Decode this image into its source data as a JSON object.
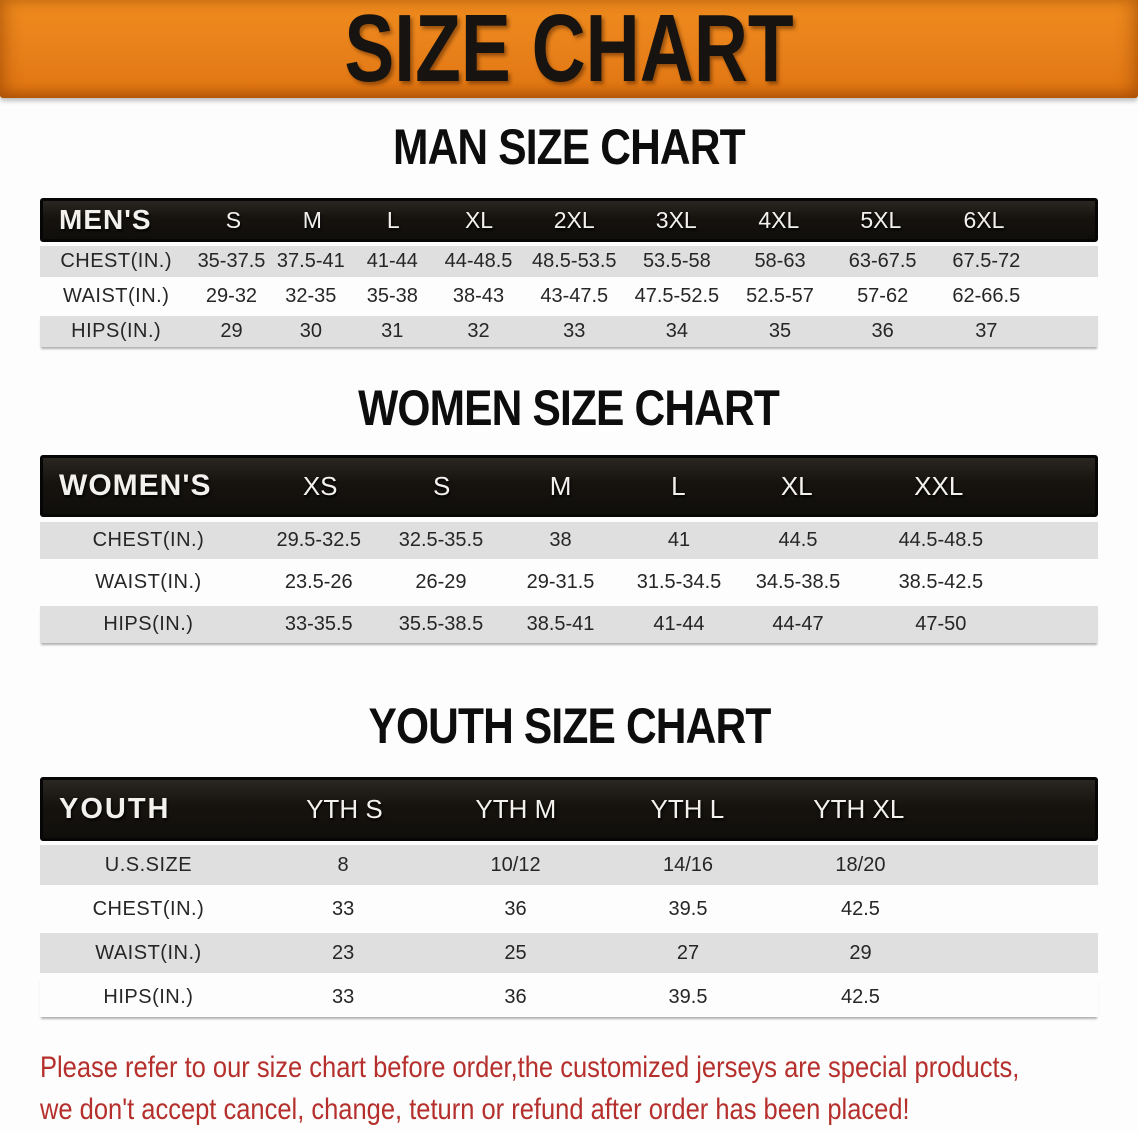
{
  "banner": {
    "title": "SIZE CHART",
    "bg_color": "#e8801a",
    "text_color": "#161310"
  },
  "sections": [
    {
      "heading": "MAN SIZE CHART",
      "table": {
        "header_label": "MEN'S",
        "columns": [
          "S",
          "M",
          "L",
          "XL",
          "2XL",
          "3XL",
          "4XL",
          "5XL",
          "6XL"
        ],
        "rows": [
          {
            "label": "CHEST(IN.)",
            "values": [
              "35-37.5",
              "37.5-41",
              "41-44",
              "44-48.5",
              "48.5-53.5",
              "53.5-58",
              "58-63",
              "63-67.5",
              "67.5-72"
            ]
          },
          {
            "label": "WAIST(IN.)",
            "values": [
              "29-32",
              "32-35",
              "35-38",
              "38-43",
              "43-47.5",
              "47.5-52.5",
              "52.5-57",
              "57-62",
              "62-66.5"
            ]
          },
          {
            "label": "HIPS(IN.)",
            "values": [
              "29",
              "30",
              "31",
              "32",
              "33",
              "34",
              "35",
              "36",
              "37"
            ]
          }
        ]
      }
    },
    {
      "heading": "WOMEN SIZE CHART",
      "table": {
        "header_label": "WOMEN'S",
        "columns": [
          "XS",
          "S",
          "M",
          "L",
          "XL",
          "XXL"
        ],
        "rows": [
          {
            "label": "CHEST(IN.)",
            "values": [
              "29.5-32.5",
              "32.5-35.5",
              "38",
              "41",
              "44.5",
              "44.5-48.5"
            ]
          },
          {
            "label": "WAIST(IN.)",
            "values": [
              "23.5-26",
              "26-29",
              "29-31.5",
              "31.5-34.5",
              "34.5-38.5",
              "38.5-42.5"
            ]
          },
          {
            "label": "HIPS(IN.)",
            "values": [
              "33-35.5",
              "35.5-38.5",
              "38.5-41",
              "41-44",
              "44-47",
              "47-50"
            ]
          }
        ]
      }
    },
    {
      "heading": "YOUTH SIZE CHART",
      "table": {
        "header_label": "YOUTH",
        "columns": [
          "YTH S",
          "YTH M",
          "YTH L",
          "YTH XL"
        ],
        "rows": [
          {
            "label": "U.S.SIZE",
            "values": [
              "8",
              "10/12",
              "14/16",
              "18/20"
            ]
          },
          {
            "label": "CHEST(IN.)",
            "values": [
              "33",
              "36",
              "39.5",
              "42.5"
            ]
          },
          {
            "label": "WAIST(IN.)",
            "values": [
              "23",
              "25",
              "27",
              "29"
            ]
          },
          {
            "label": "HIPS(IN.)",
            "values": [
              "33",
              "36",
              "39.5",
              "42.5"
            ]
          }
        ]
      }
    }
  ],
  "disclaimer": {
    "line1": "Please refer to our size chart before order,the customized jerseys are special products,",
    "line2": "we don't accept cancel, change, teturn or refund after order has been placed!",
    "color": "#b5302c"
  },
  "colors": {
    "header_row_bg": "#16130f",
    "gray_row_bg": "#dfdfdf",
    "banner_orange": "#e8801a"
  },
  "chart_data": [
    {
      "type": "table",
      "title": "MAN SIZE CHART",
      "columns": [
        "MEN'S",
        "S",
        "M",
        "L",
        "XL",
        "2XL",
        "3XL",
        "4XL",
        "5XL",
        "6XL"
      ],
      "rows": [
        [
          "CHEST(IN.)",
          "35-37.5",
          "37.5-41",
          "41-44",
          "44-48.5",
          "48.5-53.5",
          "53.5-58",
          "58-63",
          "63-67.5",
          "67.5-72"
        ],
        [
          "WAIST(IN.)",
          "29-32",
          "32-35",
          "35-38",
          "38-43",
          "43-47.5",
          "47.5-52.5",
          "52.5-57",
          "57-62",
          "62-66.5"
        ],
        [
          "HIPS(IN.)",
          "29",
          "30",
          "31",
          "32",
          "33",
          "34",
          "35",
          "36",
          "37"
        ]
      ]
    },
    {
      "type": "table",
      "title": "WOMEN SIZE CHART",
      "columns": [
        "WOMEN'S",
        "XS",
        "S",
        "M",
        "L",
        "XL",
        "XXL"
      ],
      "rows": [
        [
          "CHEST(IN.)",
          "29.5-32.5",
          "32.5-35.5",
          "38",
          "41",
          "44.5",
          "44.5-48.5"
        ],
        [
          "WAIST(IN.)",
          "23.5-26",
          "26-29",
          "29-31.5",
          "31.5-34.5",
          "34.5-38.5",
          "38.5-42.5"
        ],
        [
          "HIPS(IN.)",
          "33-35.5",
          "35.5-38.5",
          "38.5-41",
          "41-44",
          "44-47",
          "47-50"
        ]
      ]
    },
    {
      "type": "table",
      "title": "YOUTH SIZE CHART",
      "columns": [
        "YOUTH",
        "YTH S",
        "YTH M",
        "YTH L",
        "YTH XL"
      ],
      "rows": [
        [
          "U.S.SIZE",
          "8",
          "10/12",
          "14/16",
          "18/20"
        ],
        [
          "CHEST(IN.)",
          "33",
          "36",
          "39.5",
          "42.5"
        ],
        [
          "WAIST(IN.)",
          "23",
          "25",
          "27",
          "29"
        ],
        [
          "HIPS(IN.)",
          "33",
          "36",
          "39.5",
          "42.5"
        ]
      ]
    }
  ]
}
